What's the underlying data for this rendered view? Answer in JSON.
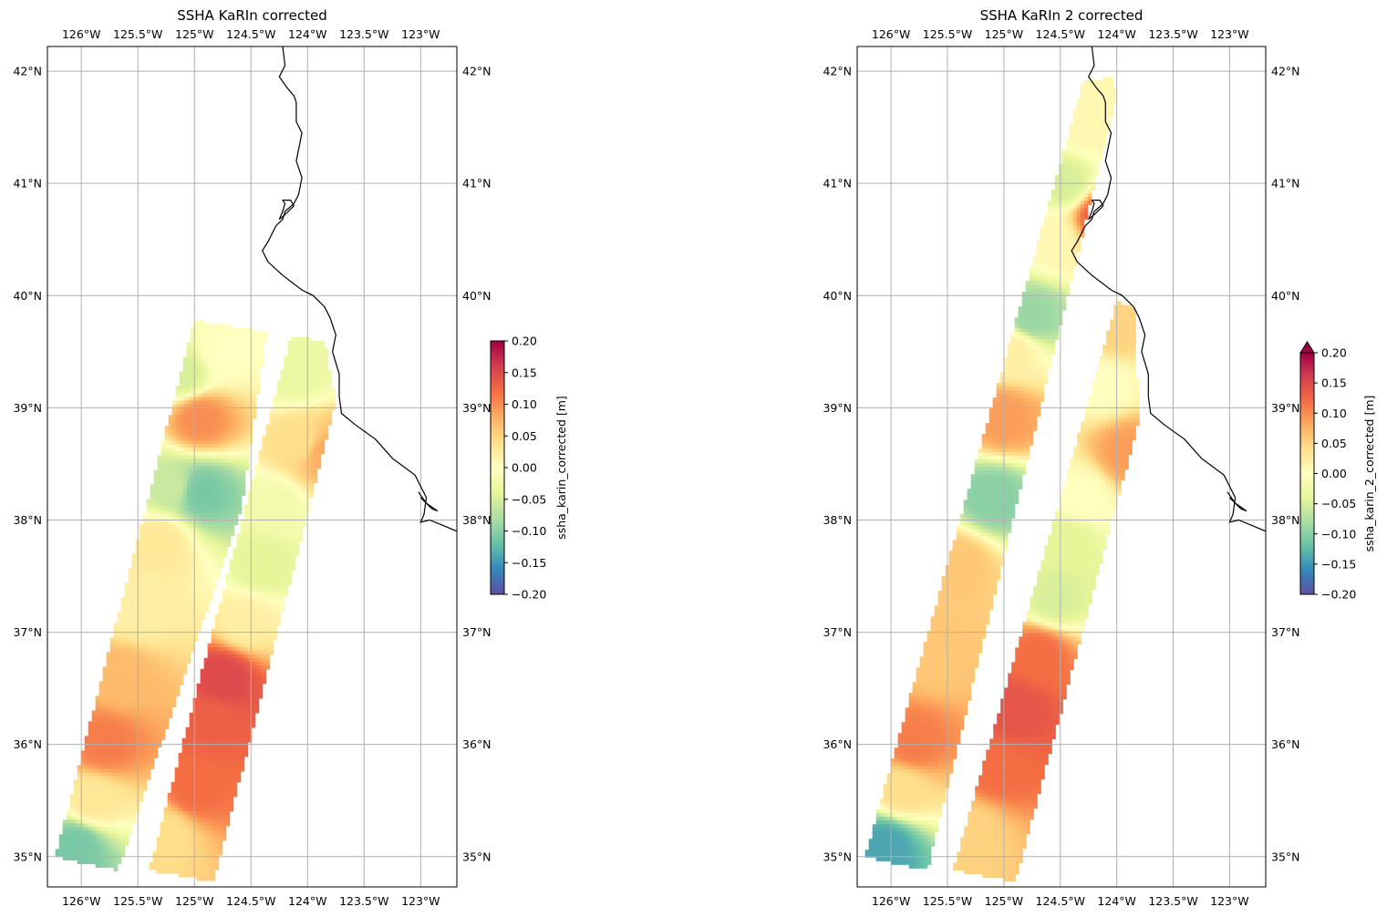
{
  "figure": {
    "colormap": [
      "#5e4fa2",
      "#3288bd",
      "#66c2a5",
      "#abdda4",
      "#e6f598",
      "#ffffbf",
      "#fee08b",
      "#fdae61",
      "#f46d43",
      "#d53e4f",
      "#9e0142"
    ],
    "gridline_color": "#b0b0b0",
    "coastline_color": "#000000"
  },
  "chart_data": [
    {
      "type": "heatmap",
      "subtype": "map",
      "title": "SSHA KaRIn corrected",
      "colorbar_label": "ssha_karin_corrected [m]",
      "colorbar_extend": "neither",
      "colorbar_ticks": [
        "0.20",
        "0.15",
        "0.10",
        "0.05",
        "0.00",
        "−0.05",
        "−0.10",
        "−0.15",
        "−0.20"
      ],
      "colorbar_range": [
        -0.2,
        0.2
      ],
      "lon_range": [
        -126.3,
        -122.68
      ],
      "lat_range": [
        34.73,
        42.22
      ],
      "lon_ticks": [
        -126,
        -125.5,
        -125,
        -124.5,
        -124,
        -123.5,
        -123
      ],
      "lon_tick_labels": [
        "126°W",
        "125.5°W",
        "125°W",
        "124.5°W",
        "124°W",
        "123.5°W",
        "123°W"
      ],
      "lat_ticks": [
        35,
        36,
        37,
        38,
        39,
        40,
        41,
        42
      ],
      "lat_tick_labels": [
        "35°N",
        "36°N",
        "37°N",
        "38°N",
        "39°N",
        "40°N",
        "41°N",
        "42°N"
      ],
      "swaths": [
        {
          "name": "left",
          "corners": [
            [
              -126.23,
              35.0
            ],
            [
              -125.68,
              34.88
            ],
            [
              -124.59,
              38.08
            ],
            [
              -125.0,
              39.78
            ]
          ],
          "top_right": [
            -124.36,
            39.68
          ],
          "ssha_points": [
            {
              "lon": -126.05,
              "lat": 35.1,
              "v": -0.11
            },
            {
              "lon": -125.9,
              "lat": 35.5,
              "v": 0.03
            },
            {
              "lon": -125.8,
              "lat": 36.0,
              "v": 0.11
            },
            {
              "lon": -125.65,
              "lat": 36.6,
              "v": 0.07
            },
            {
              "lon": -125.5,
              "lat": 37.2,
              "v": 0.02
            },
            {
              "lon": -125.3,
              "lat": 37.8,
              "v": 0.03
            },
            {
              "lon": -125.2,
              "lat": 38.3,
              "v": -0.06
            },
            {
              "lon": -124.95,
              "lat": 38.25,
              "v": -0.11
            },
            {
              "lon": -124.95,
              "lat": 38.9,
              "v": 0.1
            },
            {
              "lon": -124.75,
              "lat": 39.5,
              "v": 0.0
            },
            {
              "lon": -125.1,
              "lat": 39.3,
              "v": -0.05
            }
          ]
        },
        {
          "name": "right",
          "corners": [
            [
              -125.4,
              34.88
            ],
            [
              -124.83,
              34.78
            ],
            [
              -123.75,
              39.05
            ],
            [
              -124.15,
              39.63
            ]
          ],
          "top_right": [
            -123.85,
            39.6
          ],
          "ssha_points": [
            {
              "lon": -125.25,
              "lat": 35.2,
              "v": 0.04
            },
            {
              "lon": -125.0,
              "lat": 35.6,
              "v": 0.12
            },
            {
              "lon": -124.85,
              "lat": 36.2,
              "v": 0.13
            },
            {
              "lon": -124.75,
              "lat": 36.6,
              "v": 0.15
            },
            {
              "lon": -124.55,
              "lat": 37.1,
              "v": 0.02
            },
            {
              "lon": -124.4,
              "lat": 37.6,
              "v": -0.04
            },
            {
              "lon": -124.3,
              "lat": 38.1,
              "v": -0.02
            },
            {
              "lon": -124.05,
              "lat": 38.7,
              "v": 0.04
            },
            {
              "lon": -123.85,
              "lat": 38.6,
              "v": 0.08
            },
            {
              "lon": -124.1,
              "lat": 39.3,
              "v": -0.03
            }
          ]
        }
      ]
    },
    {
      "type": "heatmap",
      "subtype": "map",
      "title": "SSHA KaRIn 2 corrected",
      "colorbar_label": "ssha_karin_2_corrected [m]",
      "colorbar_extend": "max",
      "colorbar_ticks": [
        "0.20",
        "0.15",
        "0.10",
        "0.05",
        "0.00",
        "−0.05",
        "−0.10",
        "−0.15",
        "−0.20"
      ],
      "colorbar_range": [
        -0.2,
        0.2
      ],
      "lon_range": [
        -126.3,
        -122.68
      ],
      "lat_range": [
        34.73,
        42.22
      ],
      "lon_ticks": [
        -126,
        -125.5,
        -125,
        -124.5,
        -124,
        -123.5,
        -123
      ],
      "lon_tick_labels": [
        "126°W",
        "125.5°W",
        "125°W",
        "124.5°W",
        "124°W",
        "123.5°W",
        "123°W"
      ],
      "lat_ticks": [
        35,
        36,
        37,
        38,
        39,
        40,
        41,
        42
      ],
      "lat_tick_labels": [
        "35°N",
        "36°N",
        "37°N",
        "38°N",
        "39°N",
        "40°N",
        "41°N",
        "42°N"
      ],
      "swaths": [
        {
          "name": "left",
          "corners": [
            [
              -126.23,
              35.0
            ],
            [
              -125.68,
              34.88
            ],
            [
              -124.0,
              41.8
            ],
            [
              -124.3,
              41.9
            ]
          ],
          "top_right": [
            -124.05,
            41.95
          ],
          "ssha_points": [
            {
              "lon": -126.05,
              "lat": 35.1,
              "v": -0.14
            },
            {
              "lon": -125.9,
              "lat": 35.6,
              "v": 0.04
            },
            {
              "lon": -125.8,
              "lat": 36.0,
              "v": 0.11
            },
            {
              "lon": -125.6,
              "lat": 36.8,
              "v": 0.06
            },
            {
              "lon": -125.4,
              "lat": 37.6,
              "v": 0.06
            },
            {
              "lon": -125.1,
              "lat": 38.2,
              "v": -0.1
            },
            {
              "lon": -125.0,
              "lat": 38.9,
              "v": 0.09
            },
            {
              "lon": -124.9,
              "lat": 39.5,
              "v": 0.02
            },
            {
              "lon": -124.75,
              "lat": 39.8,
              "v": -0.09
            },
            {
              "lon": -124.55,
              "lat": 40.5,
              "v": 0.01
            },
            {
              "lon": -124.45,
              "lat": 41.0,
              "v": -0.05
            },
            {
              "lon": -124.15,
              "lat": 40.7,
              "v": 0.13
            },
            {
              "lon": -124.25,
              "lat": 41.5,
              "v": 0.01
            }
          ]
        },
        {
          "name": "right",
          "corners": [
            [
              -125.45,
              34.88
            ],
            [
              -124.9,
              34.78
            ],
            [
              -123.8,
              38.9
            ],
            [
              -124.0,
              39.95
            ]
          ],
          "top_right": [
            -123.85,
            39.9
          ],
          "ssha_points": [
            {
              "lon": -125.3,
              "lat": 35.2,
              "v": 0.05
            },
            {
              "lon": -125.05,
              "lat": 35.8,
              "v": 0.12
            },
            {
              "lon": -124.9,
              "lat": 36.3,
              "v": 0.14
            },
            {
              "lon": -124.7,
              "lat": 36.8,
              "v": 0.12
            },
            {
              "lon": -124.55,
              "lat": 37.3,
              "v": -0.05
            },
            {
              "lon": -124.45,
              "lat": 37.8,
              "v": -0.04
            },
            {
              "lon": -124.3,
              "lat": 38.2,
              "v": 0.0
            },
            {
              "lon": -123.9,
              "lat": 38.6,
              "v": 0.09
            },
            {
              "lon": -124.1,
              "lat": 39.2,
              "v": 0.0
            },
            {
              "lon": -124.0,
              "lat": 39.7,
              "v": 0.05
            }
          ]
        }
      ]
    }
  ]
}
